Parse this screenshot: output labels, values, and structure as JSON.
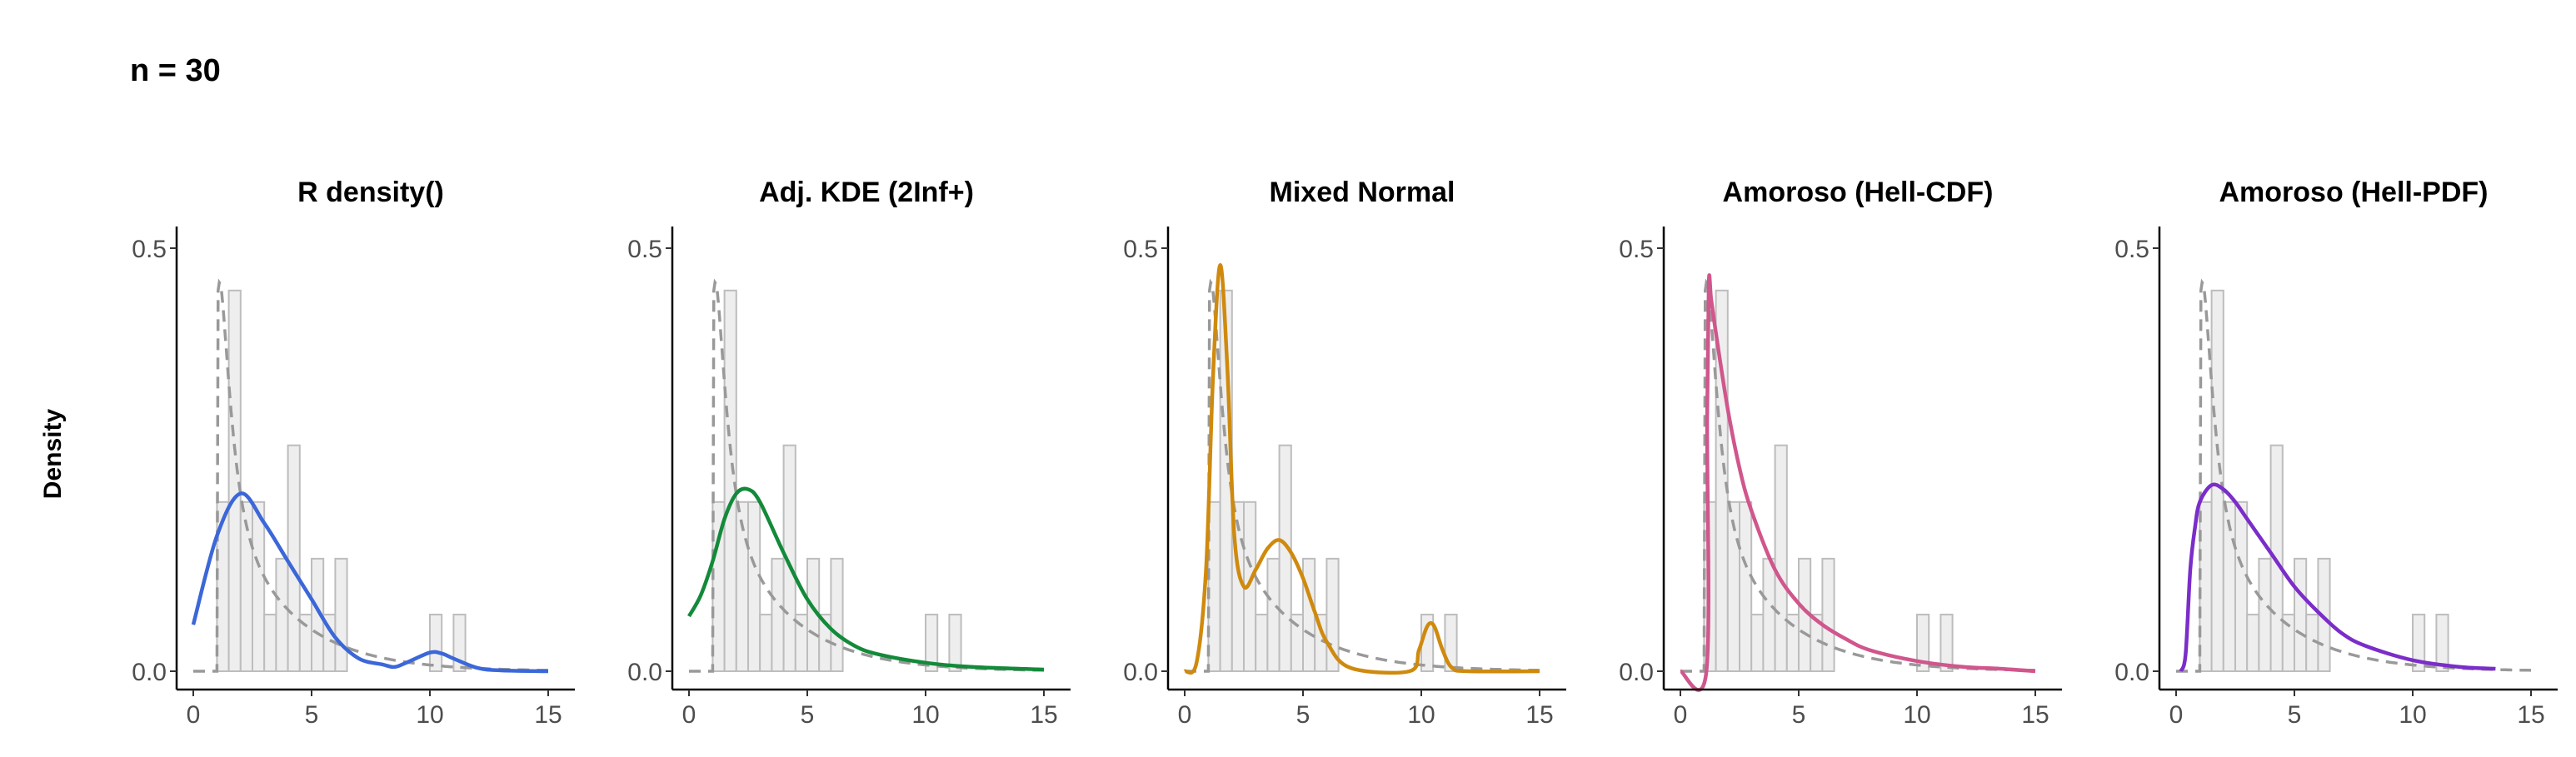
{
  "figure": {
    "title": "n = 30",
    "ylabel": "Density"
  },
  "colors": {
    "histogram_fill": "#eeeeee",
    "histogram_stroke": "#bdbdbd",
    "reference_curve": "#999999",
    "axis": "#000000"
  },
  "chart_data": [
    {
      "type": "line",
      "title": "R density()",
      "color": "#3b67d8",
      "xlim": [
        0,
        15
      ],
      "ylim": [
        0,
        0.5
      ],
      "xticks": [
        0,
        5,
        10,
        15
      ],
      "yticks": [
        0.0,
        0.5
      ],
      "xticklabels": [
        "0",
        "5",
        "10",
        "15"
      ],
      "yticklabels": [
        "0.0",
        "0.5"
      ],
      "grid": false,
      "histogram": {
        "bin_width": 0.5,
        "bin_start": 1.0,
        "counts": [
          0.2,
          0.45,
          0.2,
          0.2,
          0.067,
          0.133,
          0.267,
          0.067,
          0.133,
          0.067,
          0.133,
          0,
          0,
          0,
          0,
          0,
          0,
          0,
          0.067,
          0,
          0.067
        ]
      },
      "reference_curve_style": "dashed",
      "fitted_curve": {
        "x": [
          0,
          1,
          2,
          3,
          4,
          5,
          6,
          7,
          8,
          8.5,
          9,
          10,
          10.5,
          11,
          12,
          13,
          15
        ],
        "y": [
          0.055,
          0.16,
          0.21,
          0.175,
          0.13,
          0.085,
          0.04,
          0.015,
          0.008,
          0.005,
          0.01,
          0.022,
          0.021,
          0.015,
          0.004,
          0.001,
          0.0
        ]
      }
    },
    {
      "type": "line",
      "title": "Adj. KDE (2Inf+)",
      "color": "#138a3a",
      "xlim": [
        0,
        15
      ],
      "ylim": [
        0,
        0.5
      ],
      "xticks": [
        0,
        5,
        10,
        15
      ],
      "yticks": [
        0.0,
        0.5
      ],
      "xticklabels": [
        "0",
        "5",
        "10",
        "15"
      ],
      "yticklabels": [
        "0.0",
        "0.5"
      ],
      "grid": false,
      "histogram": {
        "bin_width": 0.5,
        "bin_start": 1.0,
        "counts": [
          0.2,
          0.45,
          0.2,
          0.2,
          0.067,
          0.133,
          0.267,
          0.067,
          0.133,
          0.067,
          0.133,
          0,
          0,
          0,
          0,
          0,
          0,
          0,
          0.067,
          0,
          0.067
        ]
      },
      "reference_curve_style": "dashed",
      "fitted_curve": {
        "x": [
          0,
          0.5,
          1,
          1.5,
          2,
          2.5,
          3,
          4,
          5,
          6,
          7,
          8,
          10,
          12,
          15
        ],
        "y": [
          0.065,
          0.09,
          0.13,
          0.18,
          0.21,
          0.215,
          0.2,
          0.14,
          0.085,
          0.05,
          0.03,
          0.02,
          0.01,
          0.005,
          0.002
        ]
      }
    },
    {
      "type": "line",
      "title": "Mixed Normal",
      "color": "#cf8a0e",
      "xlim": [
        0,
        15
      ],
      "ylim": [
        0,
        0.5
      ],
      "xticks": [
        0,
        5,
        10,
        15
      ],
      "yticks": [
        0.0,
        0.5
      ],
      "xticklabels": [
        "0",
        "5",
        "10",
        "15"
      ],
      "yticklabels": [
        "0.0",
        "0.5"
      ],
      "grid": false,
      "histogram": {
        "bin_width": 0.5,
        "bin_start": 1.0,
        "counts": [
          0.2,
          0.45,
          0.2,
          0.2,
          0.067,
          0.133,
          0.267,
          0.067,
          0.133,
          0.067,
          0.133,
          0,
          0,
          0,
          0,
          0,
          0,
          0,
          0.067,
          0,
          0.067
        ]
      },
      "reference_curve_style": "dashed",
      "fitted_curve": {
        "x": [
          0,
          0.5,
          0.9,
          1.2,
          1.5,
          1.8,
          2.1,
          2.5,
          3.0,
          3.5,
          4.0,
          4.5,
          5.0,
          5.5,
          6.0,
          7.0,
          9.5,
          9.9,
          10.2,
          10.4,
          10.6,
          10.9,
          11.3,
          12,
          15
        ],
        "y": [
          0.0,
          0.01,
          0.12,
          0.35,
          0.48,
          0.36,
          0.16,
          0.1,
          0.12,
          0.145,
          0.155,
          0.14,
          0.11,
          0.07,
          0.035,
          0.004,
          0.0,
          0.025,
          0.05,
          0.057,
          0.05,
          0.025,
          0.004,
          0.0,
          0.0
        ]
      }
    },
    {
      "type": "line",
      "title": "Amoroso (Hell-CDF)",
      "color": "#d0568c",
      "xlim": [
        0,
        15
      ],
      "ylim": [
        0,
        0.5
      ],
      "xticks": [
        0,
        5,
        10,
        15
      ],
      "yticks": [
        0.0,
        0.5
      ],
      "xticklabels": [
        "0",
        "5",
        "10",
        "15"
      ],
      "yticklabels": [
        "0.0",
        "0.5"
      ],
      "grid": false,
      "histogram": {
        "bin_width": 0.5,
        "bin_start": 1.0,
        "counts": [
          0.2,
          0.45,
          0.2,
          0.2,
          0.067,
          0.133,
          0.267,
          0.067,
          0.133,
          0.067,
          0.133,
          0,
          0,
          0,
          0,
          0,
          0,
          0,
          0.067,
          0,
          0.067
        ]
      },
      "reference_curve_style": "dashed",
      "fitted_curve": {
        "x": [
          0,
          1.1,
          1.13,
          1.2,
          1.3,
          1.5,
          2,
          2.5,
          3,
          4,
          5,
          6,
          7,
          8,
          10,
          12,
          13.5,
          15
        ],
        "y": [
          0.0,
          0.0,
          0.3,
          0.46,
          0.44,
          0.4,
          0.31,
          0.24,
          0.19,
          0.12,
          0.08,
          0.055,
          0.038,
          0.025,
          0.012,
          0.005,
          0.003,
          0.0
        ]
      }
    },
    {
      "type": "line",
      "title": "Amoroso (Hell-PDF)",
      "color": "#7b2dc9",
      "xlim": [
        0,
        15
      ],
      "ylim": [
        0,
        0.5
      ],
      "xticks": [
        0,
        5,
        10,
        15
      ],
      "yticks": [
        0.0,
        0.5
      ],
      "xticklabels": [
        "0",
        "5",
        "10",
        "15"
      ],
      "yticklabels": [
        "0.0",
        "0.5"
      ],
      "grid": false,
      "histogram": {
        "bin_width": 0.5,
        "bin_start": 1.0,
        "counts": [
          0.2,
          0.45,
          0.2,
          0.2,
          0.067,
          0.133,
          0.267,
          0.067,
          0.133,
          0.067,
          0.133,
          0,
          0,
          0,
          0,
          0,
          0,
          0,
          0.067,
          0,
          0.067
        ]
      },
      "reference_curve_style": "dashed",
      "fitted_curve": {
        "x": [
          0.2,
          0.4,
          0.6,
          0.8,
          1,
          1.5,
          2,
          2.5,
          3,
          4,
          5,
          6,
          7,
          8,
          10,
          12,
          13.5
        ],
        "y": [
          0.0,
          0.02,
          0.12,
          0.17,
          0.2,
          0.22,
          0.215,
          0.2,
          0.18,
          0.14,
          0.1,
          0.07,
          0.045,
          0.03,
          0.013,
          0.005,
          0.003
        ]
      }
    }
  ]
}
